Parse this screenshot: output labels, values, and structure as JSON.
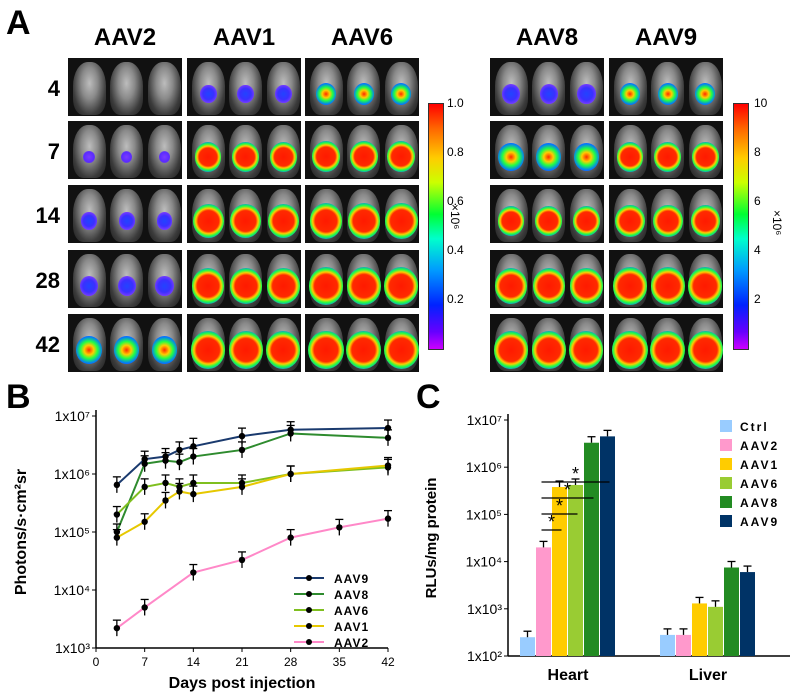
{
  "panels": {
    "a": "A",
    "b": "B",
    "c": "C"
  },
  "panel_a": {
    "left_group": [
      "AAV2",
      "AAV1",
      "AAV6"
    ],
    "right_group": [
      "AAV8",
      "AAV9"
    ],
    "days": [
      "4",
      "7",
      "14",
      "28",
      "42"
    ],
    "scale_left": {
      "ticks": [
        "1.0",
        "0.8",
        "0.6",
        "0.4",
        "0.2"
      ],
      "unit": "×10⁶"
    },
    "scale_right": {
      "ticks": [
        "10",
        "8",
        "6",
        "4",
        "2"
      ],
      "unit": "×10⁶"
    },
    "signal": {
      "AAV2": [
        0,
        0.05,
        0.2,
        0.3,
        0.55
      ],
      "AAV1": [
        0.25,
        0.6,
        0.75,
        0.8,
        0.85
      ],
      "AAV6": [
        0.35,
        0.65,
        0.8,
        0.85,
        0.9
      ],
      "AAV8": [
        0.3,
        0.55,
        0.6,
        0.8,
        0.85
      ],
      "AAV9": [
        0.35,
        0.6,
        0.7,
        0.85,
        0.9
      ]
    }
  },
  "chart_data": [
    {
      "type": "line",
      "xlabel": "Days post injection",
      "ylabel": "Photons/s·cm²sr",
      "x_ticks": [
        "0",
        "7",
        "14",
        "21",
        "28",
        "35",
        "42"
      ],
      "y_ticks": [
        "1x10³",
        "1x10⁴",
        "1x10⁵",
        "1x10⁶",
        "1x10⁷"
      ],
      "xlim": [
        0,
        42
      ],
      "ylim": [
        1000,
        10000000
      ],
      "log_y": true,
      "legend_position": "bottom-right",
      "series": [
        {
          "name": "AAV9",
          "color": "#1a3a6e",
          "x": [
            3,
            7,
            10,
            12,
            14,
            21,
            28,
            42
          ],
          "y": [
            650000,
            1800000,
            2000000,
            2600000,
            3000000,
            4500000,
            5800000,
            6200000
          ]
        },
        {
          "name": "AAV8",
          "color": "#2e8b2e",
          "x": [
            3,
            7,
            10,
            12,
            14,
            21,
            28,
            42
          ],
          "y": [
            100000,
            1500000,
            1700000,
            1600000,
            2000000,
            2600000,
            5000000,
            4200000
          ]
        },
        {
          "name": "AAV6",
          "color": "#7fbf1f",
          "x": [
            3,
            7,
            10,
            12,
            14,
            21,
            28,
            42
          ],
          "y": [
            200000,
            600000,
            700000,
            600000,
            700000,
            700000,
            1000000,
            1300000
          ]
        },
        {
          "name": "AAV1",
          "color": "#e6c800",
          "x": [
            3,
            7,
            10,
            12,
            14,
            21,
            28,
            42
          ],
          "y": [
            80000,
            150000,
            350000,
            500000,
            450000,
            600000,
            1000000,
            1400000
          ]
        },
        {
          "name": "AAV2",
          "color": "#ff88c8",
          "x": [
            3,
            7,
            14,
            21,
            28,
            35,
            42
          ],
          "y": [
            2200,
            5000,
            20000,
            33000,
            80000,
            120000,
            170000
          ]
        }
      ]
    },
    {
      "type": "bar",
      "xlabel": "",
      "ylabel": "RLUs/mg protein",
      "categories": [
        "Heart",
        "Liver"
      ],
      "y_ticks": [
        "1x10²",
        "1x10³",
        "1x10⁴",
        "1x10⁵",
        "1x10⁶",
        "1x10⁷"
      ],
      "ylim": [
        100,
        10000000
      ],
      "log_y": true,
      "legend_position": "top-right",
      "significance_marker": "*",
      "series": [
        {
          "name": "Ctrl",
          "color": "#99ccff",
          "values": [
            250,
            280
          ]
        },
        {
          "name": "AAV2",
          "color": "#ff99cc",
          "values": [
            20000,
            280
          ]
        },
        {
          "name": "AAV1",
          "color": "#ffcc00",
          "values": [
            380000,
            1300
          ]
        },
        {
          "name": "AAV6",
          "color": "#99cc33",
          "values": [
            420000,
            1100
          ]
        },
        {
          "name": "AAV8",
          "color": "#228b22",
          "values": [
            3300000,
            7500
          ]
        },
        {
          "name": "AAV9",
          "color": "#003366",
          "values": [
            4500000,
            6000
          ]
        }
      ]
    }
  ]
}
